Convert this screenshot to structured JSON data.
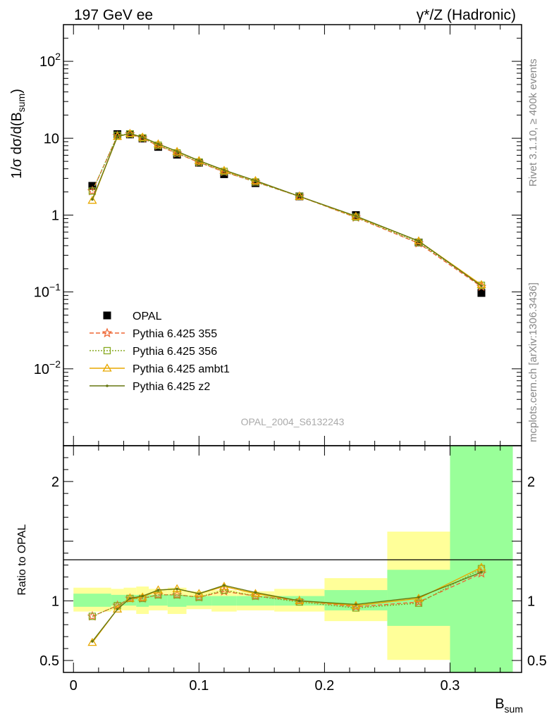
{
  "header": {
    "left": "197 GeV ee",
    "right": "γ*/Z (Hadronic)"
  },
  "side": {
    "rivet": "Rivet 3.1.10, ≥ 400k events",
    "mcplots": "mcplots.cern.ch [arXiv:1306.3436]"
  },
  "watermark": "OPAL_2004_S6132243",
  "chart_data": [
    {
      "type": "scatter",
      "panel": "main",
      "ylabel": "1/σ dσ/d(B_sum)",
      "yscale": "log",
      "ylim": [
        0.001,
        300
      ],
      "xlim": [
        -0.008,
        0.357
      ],
      "yticks": [
        {
          "v": 0.01,
          "base": "10",
          "exp": "−2"
        },
        {
          "v": 0.1,
          "base": "10",
          "exp": "−1"
        },
        {
          "v": 1,
          "base": "1",
          "exp": ""
        },
        {
          "v": 10,
          "base": "10",
          "exp": ""
        },
        {
          "v": 100,
          "base": "10",
          "exp": "2"
        }
      ],
      "x": [
        0.015,
        0.035,
        0.045,
        0.055,
        0.0675,
        0.0825,
        0.1,
        0.12,
        0.145,
        0.18,
        0.225,
        0.275,
        0.325
      ],
      "series": [
        {
          "name": "OPAL",
          "color": "#000000",
          "marker": "square",
          "dash": "none",
          "values": [
            2.4,
            11.3,
            11.2,
            9.9,
            7.7,
            6.1,
            4.8,
            3.4,
            2.6,
            1.75,
            1.0,
            0.44,
            0.097
          ]
        },
        {
          "name": "Pythia 6.425 355",
          "color": "#ee6633",
          "marker": "star",
          "dash": "6,3",
          "values": [
            2.05,
            10.7,
            11.3,
            9.95,
            8.0,
            6.35,
            4.85,
            3.65,
            2.7,
            1.75,
            0.93,
            0.43,
            0.117
          ]
        },
        {
          "name": "Pythia 6.425 356",
          "color": "#88aa22",
          "marker": "open-square",
          "dash": "2,2",
          "values": [
            2.05,
            10.9,
            11.4,
            10.1,
            8.1,
            6.45,
            4.9,
            3.7,
            2.7,
            1.75,
            0.94,
            0.44,
            0.122
          ]
        },
        {
          "name": "Pythia 6.425 ambt1",
          "color": "#e8a800",
          "marker": "open-triangle",
          "dash": "none",
          "values": [
            1.55,
            10.5,
            11.5,
            10.3,
            8.4,
            6.7,
            5.1,
            3.8,
            2.8,
            1.75,
            0.96,
            0.46,
            0.124
          ]
        },
        {
          "name": "Pythia 6.425 z2",
          "color": "#667711",
          "marker": "dot",
          "dash": "none",
          "values": [
            1.6,
            10.5,
            11.5,
            10.3,
            8.4,
            6.75,
            5.1,
            3.85,
            2.8,
            1.75,
            0.97,
            0.46,
            0.12
          ]
        }
      ]
    },
    {
      "type": "line",
      "panel": "ratio",
      "ylabel": "Ratio to OPAL",
      "xlabel": "B_sum",
      "ylim": [
        0.4,
        2.3
      ],
      "xlim": [
        -0.008,
        0.357
      ],
      "xticks": [
        0,
        0.1,
        0.2,
        0.3
      ],
      "yticks": [
        0.5,
        1,
        2
      ],
      "bins": [
        {
          "lo": 0.0,
          "hi": 0.03,
          "stat": [
            0.95,
            1.06
          ],
          "tot": [
            0.91,
            1.11
          ]
        },
        {
          "lo": 0.03,
          "hi": 0.04,
          "stat": [
            0.96,
            1.05
          ],
          "tot": [
            0.92,
            1.1
          ]
        },
        {
          "lo": 0.04,
          "hi": 0.05,
          "stat": [
            0.96,
            1.05
          ],
          "tot": [
            0.92,
            1.11
          ]
        },
        {
          "lo": 0.05,
          "hi": 0.06,
          "stat": [
            0.95,
            1.05
          ],
          "tot": [
            0.89,
            1.12
          ]
        },
        {
          "lo": 0.06,
          "hi": 0.075,
          "stat": [
            0.96,
            1.05
          ],
          "tot": [
            0.92,
            1.1
          ]
        },
        {
          "lo": 0.075,
          "hi": 0.09,
          "stat": [
            0.95,
            1.05
          ],
          "tot": [
            0.89,
            1.11
          ]
        },
        {
          "lo": 0.09,
          "hi": 0.11,
          "stat": [
            0.96,
            1.04
          ],
          "tot": [
            0.93,
            1.08
          ]
        },
        {
          "lo": 0.11,
          "hi": 0.13,
          "stat": [
            0.96,
            1.04
          ],
          "tot": [
            0.91,
            1.09
          ]
        },
        {
          "lo": 0.13,
          "hi": 0.16,
          "stat": [
            0.96,
            1.04
          ],
          "tot": [
            0.92,
            1.08
          ]
        },
        {
          "lo": 0.16,
          "hi": 0.2,
          "stat": [
            0.96,
            1.04
          ],
          "tot": [
            0.91,
            1.1
          ]
        },
        {
          "lo": 0.2,
          "hi": 0.25,
          "stat": [
            0.92,
            1.09
          ],
          "tot": [
            0.83,
            1.19
          ]
        },
        {
          "lo": 0.25,
          "hi": 0.3,
          "stat": [
            0.79,
            1.26
          ],
          "tot": [
            0.505,
            1.58
          ]
        },
        {
          "lo": 0.3,
          "hi": 0.35,
          "stat": [
            0.35,
            2.3
          ],
          "tot": [
            0.35,
            2.3
          ]
        }
      ],
      "series": [
        {
          "name": "Pythia 6.425 355",
          "values": [
            0.87,
            0.96,
            1.02,
            1.02,
            1.05,
            1.05,
            1.03,
            1.08,
            1.04,
            1.0,
            0.95,
            0.99,
            1.23
          ]
        },
        {
          "name": "Pythia 6.425 356",
          "values": [
            0.87,
            0.96,
            1.02,
            1.02,
            1.05,
            1.05,
            1.03,
            1.09,
            1.04,
            0.99,
            0.94,
            0.98,
            1.27
          ]
        },
        {
          "name": "Pythia 6.425 ambt1",
          "values": [
            0.65,
            0.93,
            1.02,
            1.03,
            1.09,
            1.1,
            1.06,
            1.12,
            1.06,
            1.0,
            0.96,
            1.02,
            1.28
          ]
        },
        {
          "name": "Pythia 6.425 z2",
          "values": [
            0.66,
            0.93,
            1.02,
            1.04,
            1.09,
            1.1,
            1.06,
            1.13,
            1.07,
            1.0,
            0.97,
            1.03,
            1.24
          ]
        }
      ],
      "colors": {
        "stat": "#99ff99",
        "tot": "#ffff99"
      }
    }
  ]
}
